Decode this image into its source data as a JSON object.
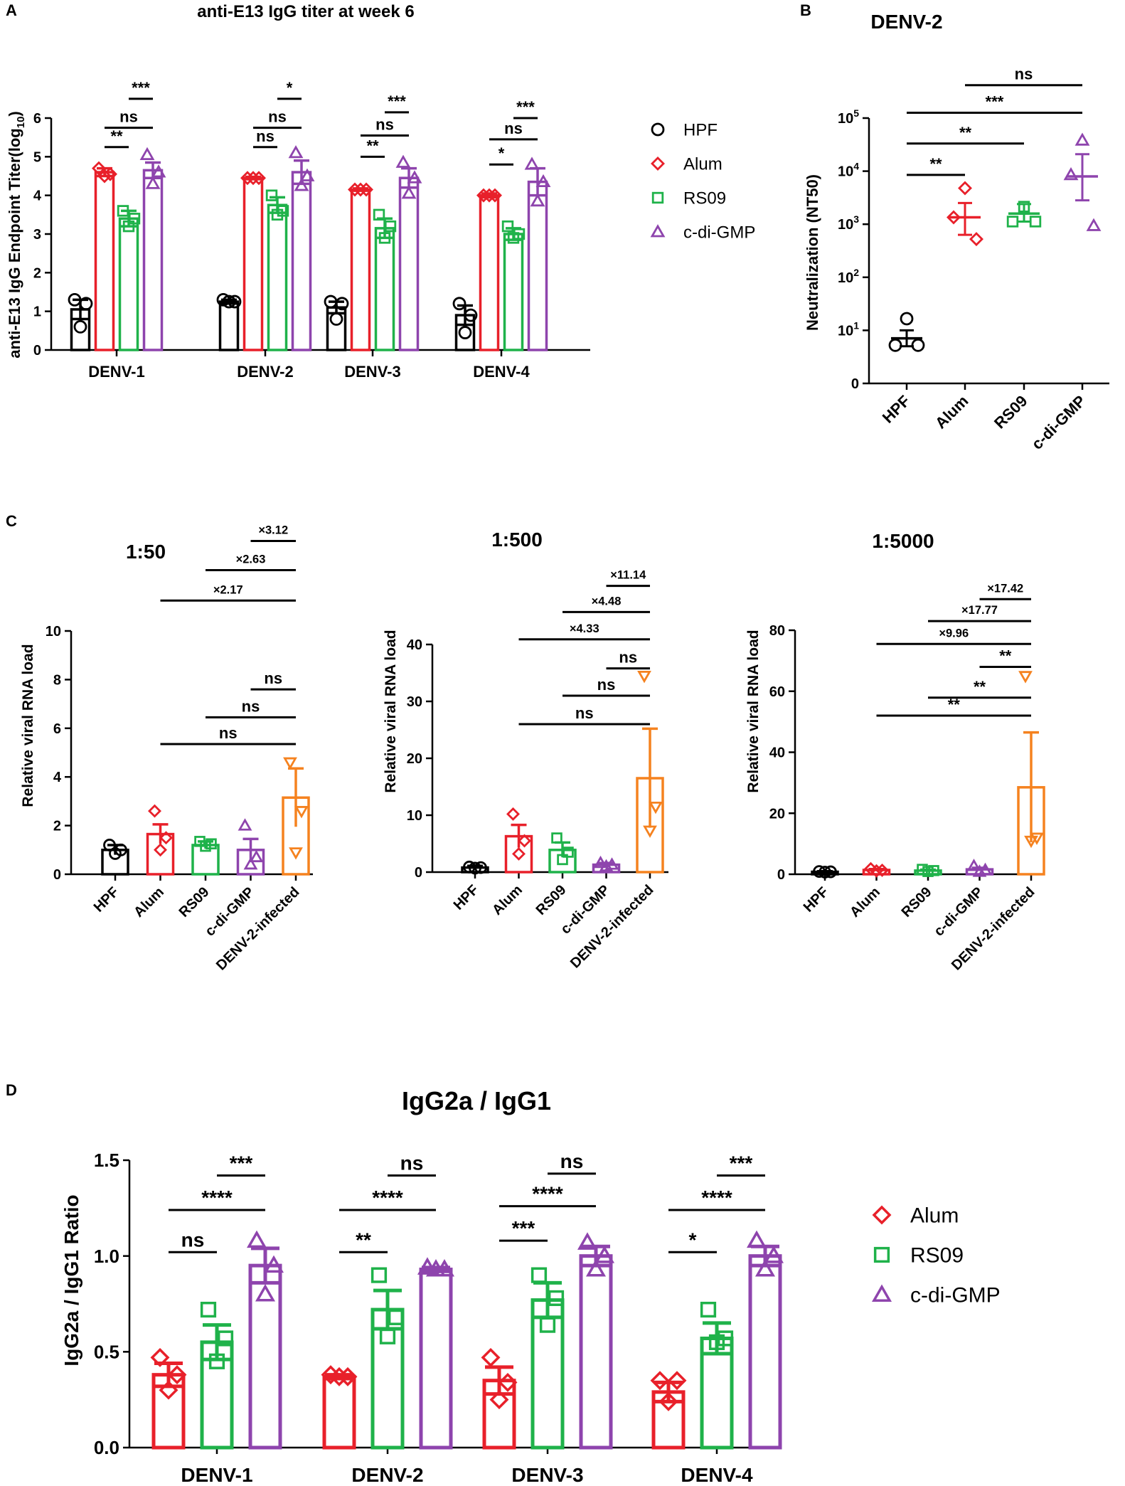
{
  "colors": {
    "HPF": "#000000",
    "Alum": "#e8202a",
    "RS09": "#1fb24a",
    "c-di-GMP": "#8e44ad",
    "DENV-2-infected": "#f5821f"
  },
  "chart_data": [
    {
      "panel": "A",
      "type": "bar",
      "title": "anti-E13 IgG titer at week 6",
      "ylabel_main": "anti-E13 IgG Endpoint  Titer(log",
      "ylabel_sub": "10",
      "ylabel_end": ")",
      "ylim": [
        0,
        6
      ],
      "yticks": [
        0,
        1,
        2,
        3,
        4,
        5,
        6
      ],
      "categories": [
        "DENV-1",
        "DENV-2",
        "DENV-3",
        "DENV-4"
      ],
      "series": [
        {
          "name": "HPF",
          "values": [
            1.05,
            1.25,
            1.1,
            0.9
          ],
          "errors": [
            0.25,
            0.05,
            0.15,
            0.25
          ],
          "points": [
            [
              1.3,
              1.2,
              0.6
            ],
            [
              1.3,
              1.25,
              1.25
            ],
            [
              1.25,
              1.2,
              0.8
            ],
            [
              1.2,
              0.9,
              0.45
            ]
          ]
        },
        {
          "name": "Alum",
          "values": [
            4.6,
            4.45,
            4.15,
            4.0
          ],
          "errors": [
            0.1,
            0.03,
            0.03,
            0.05
          ],
          "points": [
            [
              4.7,
              4.55,
              4.5
            ],
            [
              4.45,
              4.45,
              4.45
            ],
            [
              4.15,
              4.15,
              4.15
            ],
            [
              4.0,
              4.0,
              4.0
            ]
          ]
        },
        {
          "name": "RS09",
          "values": [
            3.4,
            3.75,
            3.15,
            3.0
          ],
          "errors": [
            0.2,
            0.2,
            0.25,
            0.15
          ],
          "points": [
            [
              3.6,
              3.4,
              3.2
            ],
            [
              4.0,
              3.6,
              3.5
            ],
            [
              3.5,
              3.2,
              2.9
            ],
            [
              3.2,
              3.0,
              2.9
            ]
          ]
        },
        {
          "name": "c-di-GMP",
          "values": [
            4.65,
            4.6,
            4.45,
            4.35
          ],
          "errors": [
            0.2,
            0.3,
            0.25,
            0.35
          ],
          "points": [
            [
              5.05,
              4.6,
              4.3
            ],
            [
              5.1,
              4.5,
              4.25
            ],
            [
              4.85,
              4.45,
              4.05
            ],
            [
              4.8,
              4.35,
              3.85
            ]
          ]
        }
      ],
      "legend": [
        "HPF",
        "Alum",
        "RS09",
        "c-di-GMP"
      ],
      "significance": [
        {
          "cat": 0,
          "from": 1,
          "to": 2,
          "y": 5.25,
          "label": "**"
        },
        {
          "cat": 0,
          "from": 1,
          "to": 3,
          "y": 5.75,
          "label": "ns"
        },
        {
          "cat": 0,
          "from": 2,
          "to": 3,
          "y": 6.5,
          "label": "***"
        },
        {
          "cat": 1,
          "from": 1,
          "to": 2,
          "y": 5.25,
          "label": "ns"
        },
        {
          "cat": 1,
          "from": 1,
          "to": 3,
          "y": 5.75,
          "label": "ns"
        },
        {
          "cat": 1,
          "from": 2,
          "to": 3,
          "y": 6.5,
          "label": "*"
        },
        {
          "cat": 2,
          "from": 1,
          "to": 2,
          "y": 5.0,
          "label": "**"
        },
        {
          "cat": 2,
          "from": 1,
          "to": 3,
          "y": 5.55,
          "label": "ns"
        },
        {
          "cat": 2,
          "from": 2,
          "to": 3,
          "y": 6.15,
          "label": "***"
        },
        {
          "cat": 3,
          "from": 1,
          "to": 2,
          "y": 4.8,
          "label": "*"
        },
        {
          "cat": 3,
          "from": 1,
          "to": 3,
          "y": 5.45,
          "label": "ns"
        },
        {
          "cat": 3,
          "from": 2,
          "to": 3,
          "y": 6.0,
          "label": "***"
        }
      ]
    },
    {
      "panel": "B",
      "type": "scatter",
      "title": "DENV-2",
      "ylabel": "Neutralization (NT50)",
      "yscale": "log",
      "ylim_log10": [
        0,
        5
      ],
      "ytick_labels": [
        {
          "value": 0,
          "base": "0",
          "exp": ""
        },
        {
          "value": 1,
          "base": "10",
          "exp": "1"
        },
        {
          "value": 2,
          "base": "10",
          "exp": "2"
        },
        {
          "value": 3,
          "base": "10",
          "exp": "3"
        },
        {
          "value": 4,
          "base": "10",
          "exp": "4"
        },
        {
          "value": 5,
          "base": "10",
          "exp": "5"
        }
      ],
      "categories": [
        "HPF",
        "Alum",
        "RS09",
        "c-di-GMP"
      ],
      "means_log10": [
        0.85,
        3.13,
        3.2,
        3.9
      ],
      "err_low_log10": [
        0.7,
        2.8,
        3.05,
        3.45
      ],
      "err_high_log10": [
        1.0,
        3.4,
        3.38,
        4.32
      ],
      "points_log10": [
        [
          1.22,
          0.72,
          0.72
        ],
        [
          3.68,
          3.13,
          2.72
        ],
        [
          3.33,
          3.05,
          3.05
        ],
        [
          4.58,
          3.93,
          2.97
        ]
      ],
      "significance": [
        {
          "from": 0,
          "to": 1,
          "y_log10": 3.93,
          "label": "**"
        },
        {
          "from": 0,
          "to": 2,
          "y_log10": 4.52,
          "label": "**"
        },
        {
          "from": 0,
          "to": 3,
          "y_log10": 5.1,
          "label": "***"
        },
        {
          "from": 1,
          "to": 3,
          "y_log10": 5.62,
          "label": "ns"
        }
      ]
    },
    {
      "panel": "C1",
      "type": "bar",
      "title": "1:50",
      "ylabel": "Relative viral RNA load",
      "ylim": [
        0,
        10
      ],
      "yticks": [
        0,
        2,
        4,
        6,
        8,
        10
      ],
      "categories": [
        "HPF",
        "Alum",
        "RS09",
        "c-di-GMP",
        "DENV-2-infected"
      ],
      "values": [
        1.0,
        1.65,
        1.2,
        1.0,
        3.15
      ],
      "errors": [
        0.2,
        0.4,
        0.15,
        0.45,
        1.2
      ],
      "points": [
        [
          1.2,
          1.0,
          0.85
        ],
        [
          2.6,
          1.5,
          1.0
        ],
        [
          1.35,
          1.25,
          1.15
        ],
        [
          2.0,
          0.7,
          0.4
        ],
        [
          4.6,
          2.6,
          0.9
        ]
      ],
      "significance": [
        {
          "from": 1,
          "to": 4,
          "y": 5.35,
          "label": "ns"
        },
        {
          "from": 2,
          "to": 4,
          "y": 6.45,
          "label": "ns"
        },
        {
          "from": 3,
          "to": 4,
          "y": 7.6,
          "label": "ns"
        },
        {
          "from": 1,
          "to": 4,
          "y": 11.25,
          "label": "×2.17"
        },
        {
          "from": 2,
          "to": 4,
          "y": 12.5,
          "label": "×2.63"
        },
        {
          "from": 3,
          "to": 4,
          "y": 13.7,
          "label": "×3.12"
        }
      ]
    },
    {
      "panel": "C2",
      "type": "bar",
      "title": "1:500",
      "ylabel": "Relative viral RNA load",
      "ylim": [
        0,
        40
      ],
      "yticks": [
        0,
        10,
        20,
        30,
        40
      ],
      "categories": [
        "HPF",
        "Alum",
        "RS09",
        "c-di-GMP",
        "DENV-2-infected"
      ],
      "values": [
        0.8,
        6.3,
        3.9,
        1.3,
        16.5
      ],
      "errors": [
        0.3,
        2.0,
        1.3,
        0.3,
        8.7
      ],
      "points": [
        [
          0.9,
          0.8,
          0.7
        ],
        [
          10.2,
          5.5,
          3.2
        ],
        [
          6.0,
          3.5,
          2.2
        ],
        [
          1.6,
          1.3,
          1.0
        ],
        [
          34.5,
          11.5,
          7.3
        ]
      ],
      "significance": [
        {
          "from": 1,
          "to": 4,
          "y": 26.0,
          "label": "ns"
        },
        {
          "from": 2,
          "to": 4,
          "y": 31.0,
          "label": "ns"
        },
        {
          "from": 3,
          "to": 4,
          "y": 35.8,
          "label": "ns"
        },
        {
          "from": 1,
          "to": 4,
          "y": 40.9,
          "label": "×4.33"
        },
        {
          "from": 2,
          "to": 4,
          "y": 45.7,
          "label": "×4.48"
        },
        {
          "from": 3,
          "to": 4,
          "y": 50.3,
          "label": "×11.14"
        }
      ]
    },
    {
      "panel": "C3",
      "type": "bar",
      "title": "1:5000",
      "ylabel": "Relative viral RNA load",
      "ylim": [
        0,
        80
      ],
      "yticks": [
        0,
        20,
        40,
        60,
        80
      ],
      "categories": [
        "HPF",
        "Alum",
        "RS09",
        "c-di-GMP",
        "DENV-2-infected"
      ],
      "values": [
        0.8,
        1.4,
        1.2,
        1.6,
        28.5
      ],
      "errors": [
        0.2,
        0.3,
        0.3,
        0.5,
        18.0
      ],
      "points": [
        [
          0.9,
          0.8,
          0.7
        ],
        [
          1.8,
          1.3,
          1.1
        ],
        [
          1.6,
          1.2,
          0.9
        ],
        [
          2.7,
          1.4,
          0.8
        ],
        [
          65.0,
          12.0,
          11.0
        ]
      ],
      "significance": [
        {
          "from": 1,
          "to": 4,
          "y": 52.0,
          "label": "**"
        },
        {
          "from": 2,
          "to": 4,
          "y": 57.9,
          "label": "**"
        },
        {
          "from": 3,
          "to": 4,
          "y": 68.0,
          "label": "**"
        },
        {
          "from": 1,
          "to": 4,
          "y": 75.5,
          "label": "×9.96"
        },
        {
          "from": 2,
          "to": 4,
          "y": 83.0,
          "label": "×17.77"
        },
        {
          "from": 3,
          "to": 4,
          "y": 90.2,
          "label": "×17.42"
        }
      ]
    },
    {
      "panel": "D",
      "type": "bar",
      "title": "IgG2a / IgG1",
      "ylabel": "IgG2a / IgG1  Ratio",
      "ylim": [
        0,
        1.5
      ],
      "yticks": [
        0.0,
        0.5,
        1.0,
        1.5
      ],
      "ytick_labels": [
        "0.0",
        "0.5",
        "1.0",
        "1.5"
      ],
      "categories": [
        "DENV-1",
        "DENV-2",
        "DENV-3",
        "DENV-4"
      ],
      "series": [
        {
          "name": "Alum",
          "values": [
            0.38,
            0.37,
            0.35,
            0.29
          ],
          "errors": [
            0.06,
            0.01,
            0.07,
            0.05
          ],
          "points": [
            [
              0.47,
              0.38,
              0.3
            ],
            [
              0.38,
              0.37,
              0.37
            ],
            [
              0.47,
              0.34,
              0.25
            ],
            [
              0.35,
              0.35,
              0.24
            ]
          ]
        },
        {
          "name": "RS09",
          "values": [
            0.55,
            0.72,
            0.77,
            0.57
          ],
          "errors": [
            0.09,
            0.1,
            0.09,
            0.08
          ],
          "points": [
            [
              0.72,
              0.57,
              0.45
            ],
            [
              0.9,
              0.68,
              0.58
            ],
            [
              0.9,
              0.78,
              0.64
            ],
            [
              0.72,
              0.57,
              0.55
            ]
          ]
        },
        {
          "name": "c-di-GMP",
          "values": [
            0.95,
            0.93,
            1.0,
            1.0
          ],
          "errors": [
            0.09,
            0.01,
            0.05,
            0.05
          ],
          "points": [
            [
              1.08,
              0.95,
              0.8
            ],
            [
              0.94,
              0.93,
              0.93
            ],
            [
              1.07,
              1.0,
              0.93
            ],
            [
              1.08,
              1.0,
              0.93
            ]
          ]
        }
      ],
      "legend": [
        "Alum",
        "RS09",
        "c-di-GMP"
      ],
      "significance": [
        {
          "cat": 0,
          "from": 0,
          "to": 1,
          "y": 1.02,
          "label": "ns"
        },
        {
          "cat": 0,
          "from": 0,
          "to": 2,
          "y": 1.24,
          "label": "****"
        },
        {
          "cat": 0,
          "from": 1,
          "to": 2,
          "y": 1.42,
          "label": "***"
        },
        {
          "cat": 1,
          "from": 0,
          "to": 1,
          "y": 1.02,
          "label": "**"
        },
        {
          "cat": 1,
          "from": 0,
          "to": 2,
          "y": 1.24,
          "label": "****"
        },
        {
          "cat": 1,
          "from": 1,
          "to": 2,
          "y": 1.42,
          "label": "ns"
        },
        {
          "cat": 2,
          "from": 0,
          "to": 1,
          "y": 1.08,
          "label": "***"
        },
        {
          "cat": 2,
          "from": 0,
          "to": 2,
          "y": 1.26,
          "label": "****"
        },
        {
          "cat": 2,
          "from": 1,
          "to": 2,
          "y": 1.43,
          "label": "ns"
        },
        {
          "cat": 3,
          "from": 0,
          "to": 1,
          "y": 1.02,
          "label": "*"
        },
        {
          "cat": 3,
          "from": 0,
          "to": 2,
          "y": 1.24,
          "label": "****"
        },
        {
          "cat": 3,
          "from": 1,
          "to": 2,
          "y": 1.42,
          "label": "***"
        }
      ]
    }
  ],
  "panel_letters": [
    "A",
    "B",
    "C",
    "D"
  ]
}
